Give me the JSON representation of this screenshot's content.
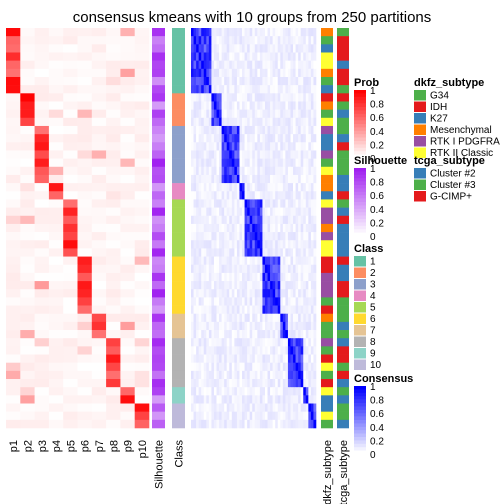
{
  "chart_data": {
    "type": "heatmap",
    "title": "consensus kmeans with 10 groups from 250 partitions",
    "columns": [
      "p1",
      "p2",
      "p3",
      "p4",
      "p5",
      "p6",
      "p7",
      "p8",
      "p9",
      "p10"
    ],
    "annotation_columns": [
      "Silhouette",
      "Class"
    ],
    "right_annotation_columns": [
      "dkfz_subtype",
      "tcga_subtype"
    ],
    "class_block_sizes": [
      8,
      4,
      7,
      2,
      7,
      7,
      3,
      6,
      2,
      3
    ],
    "membership_peaks": [
      1,
      2,
      3,
      4,
      5,
      6,
      7,
      8,
      9,
      10
    ],
    "class_colors": {
      "1": "#66C2A5",
      "2": "#FC8D62",
      "3": "#8DA0CB",
      "4": "#E78AC3",
      "5": "#A6D854",
      "6": "#FFD92F",
      "7": "#E5C494",
      "8": "#B3B3B3",
      "9": "#8DD3C7",
      "10": "#BEBADA"
    },
    "legends": [
      {
        "title": "Prob",
        "ticks": [
          "1",
          "0.8",
          "0.6",
          "0.4",
          "0.2",
          "0"
        ],
        "colors": [
          "#ffffff",
          "#ff0000"
        ]
      },
      {
        "title": "Silhouette",
        "ticks": [
          "1",
          "0.8",
          "0.6",
          "0.4",
          "0.2",
          "0"
        ],
        "colors": [
          "#ffffff",
          "#a020f0"
        ]
      },
      {
        "title": "Class",
        "labels": [
          "1",
          "2",
          "3",
          "4",
          "5",
          "6",
          "7",
          "8",
          "9",
          "10"
        ],
        "colors": [
          "#66C2A5",
          "#FC8D62",
          "#8DA0CB",
          "#E78AC3",
          "#A6D854",
          "#FFD92F",
          "#E5C494",
          "#B3B3B3",
          "#8DD3C7",
          "#BEBADA"
        ]
      },
      {
        "title": "Consensus",
        "ticks": [
          "1",
          "0.8",
          "0.6",
          "0.4",
          "0.2",
          "0"
        ],
        "colors": [
          "#ffffff",
          "#0000ff"
        ]
      },
      {
        "title": "dkfz_subtype",
        "labels": [
          "G34",
          "IDH",
          "K27",
          "Mesenchymal",
          "RTK I PDGFRA",
          "RTK II Classic"
        ],
        "colors": [
          "#4DAF4A",
          "#E41A1C",
          "#377EB8",
          "#FF7F00",
          "#984EA3",
          "#FFFF33"
        ]
      },
      {
        "title": "tcga_subtype",
        "labels": [
          "Cluster #2",
          "Cluster #3",
          "G-CIMP+"
        ],
        "colors": [
          "#377EB8",
          "#4DAF4A",
          "#E41A1C"
        ]
      }
    ]
  }
}
